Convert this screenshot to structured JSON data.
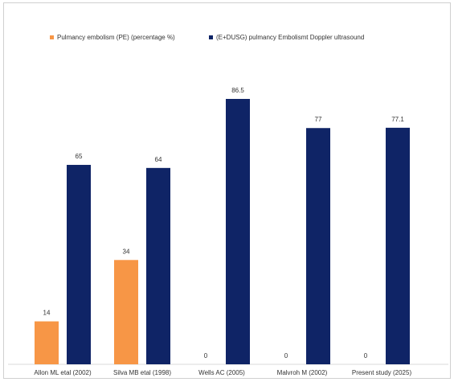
{
  "chart_data": {
    "type": "bar",
    "categories": [
      "Allon ML etal (2002)",
      "Silva MB etal (1998)",
      "Wells AC (2005)",
      "Malvroh M (2002)",
      "Present study (2025)"
    ],
    "series": [
      {
        "name": "Pulmancy embolism (PE) (percentage %)",
        "color": "#f79646",
        "values": [
          14,
          34,
          0,
          0,
          0
        ],
        "labels": [
          "14",
          "34",
          "0",
          "0",
          "0"
        ]
      },
      {
        "name": "(E+DUSG) pulmancy Embolismt Doppler ultrasound",
        "color": "#0f2466",
        "values": [
          65,
          64,
          86.5,
          77,
          77.1
        ],
        "labels": [
          "65",
          "64",
          "86.5",
          "77",
          "77.1"
        ]
      }
    ],
    "ylim": [
      0,
      100
    ],
    "grid": false,
    "legend_position": "top"
  }
}
